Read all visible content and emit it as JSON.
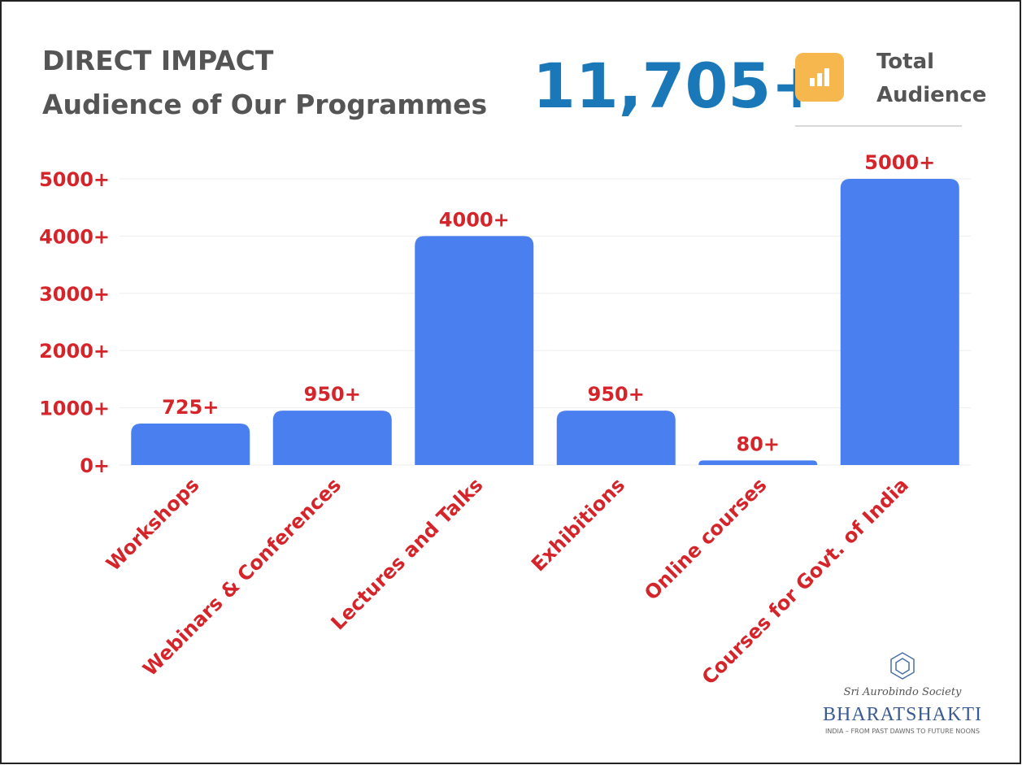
{
  "chart_data": {
    "type": "bar",
    "title": "DIRECT IMPACT",
    "subtitle": "Audience of Our Programmes",
    "headline": "11,705+",
    "headline_caption": [
      "Total",
      "Audience"
    ],
    "categories": [
      "Workshops",
      "Webinars & Conferences",
      "Lectures and Talks",
      "Exhibitions",
      "Online courses",
      "Courses for Govt. of India"
    ],
    "values": [
      725,
      950,
      4000,
      950,
      80,
      5000
    ],
    "value_labels": [
      "725+",
      "950+",
      "4000+",
      "950+",
      "80+",
      "5000+"
    ],
    "color": "#4a7ff0",
    "ylim": [
      0,
      5000
    ],
    "yticks": [
      {
        "value": 0,
        "label": "0+"
      },
      {
        "value": 1000,
        "label": "1000+"
      },
      {
        "value": 2000,
        "label": "2000+"
      },
      {
        "value": 3000,
        "label": "3000+"
      },
      {
        "value": 4000,
        "label": "4000+"
      },
      {
        "value": 5000,
        "label": "5000+"
      }
    ],
    "grid": true
  },
  "logo": {
    "script": "Sri Aurobindo Society",
    "name": "BHARATSHAKTI",
    "tagline": "INDIA – FROM PAST DAWNS TO FUTURE NOONS"
  }
}
